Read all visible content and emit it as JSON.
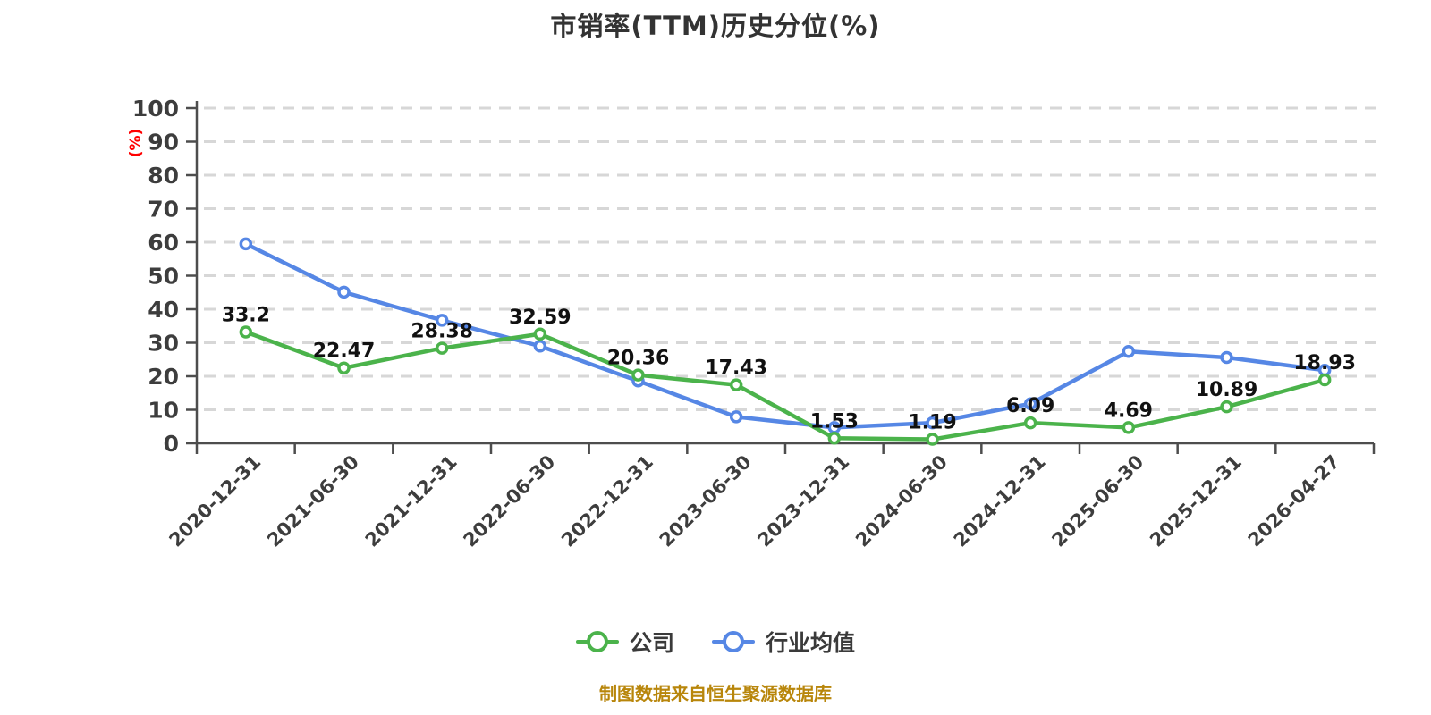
{
  "title": "市销率(TTM)历史分位(%)",
  "footer": "制图数据来自恒生聚源数据库",
  "legend": [
    {
      "label": "公司",
      "color": "#4bb34b"
    },
    {
      "label": "行业均值",
      "color": "#5687e5"
    }
  ],
  "colors": {
    "company_line": "#4bb34b",
    "industry_line": "#5687e5",
    "marker_fill": "#ffffff",
    "grid": "#d7d7d7",
    "axis": "#4d4d4d",
    "tick_label": "#3d3d3d",
    "value_label": "#111111",
    "y_axis_name": "#ff0000",
    "title": "#333333",
    "footer": "#b8860b"
  },
  "chart_data": {
    "type": "line",
    "title": "市销率(TTM)历史分位(%)",
    "categories": [
      "2020-12-31",
      "2021-06-30",
      "2021-12-31",
      "2022-06-30",
      "2022-12-31",
      "2023-06-30",
      "2023-12-31",
      "2024-06-30",
      "2024-12-31",
      "2025-06-30",
      "2025-12-31",
      "2026-04-27"
    ],
    "series": [
      {
        "name": "行业均值",
        "color": "#5687e5",
        "values": [
          59.5,
          45.1,
          36.7,
          29.0,
          18.6,
          7.9,
          4.7,
          6.1,
          11.8,
          27.4,
          25.6,
          21.8
        ],
        "values_estimated": true,
        "show_value_labels": false
      },
      {
        "name": "公司",
        "color": "#4bb34b",
        "values": [
          33.2,
          22.47,
          28.38,
          32.59,
          20.36,
          17.43,
          1.53,
          1.19,
          6.09,
          4.69,
          10.89,
          18.93
        ],
        "value_labels": [
          "33.2",
          "22.47",
          "28.38",
          "32.59",
          "20.36",
          "17.43",
          "1.53",
          "1.19",
          "6.09",
          "4.69",
          "10.89",
          "18.93"
        ],
        "show_value_labels": true
      }
    ],
    "xlabel": "",
    "ylabel": "(%)",
    "ylim": [
      0,
      100
    ],
    "y_ticks": [
      0,
      10,
      20,
      30,
      40,
      50,
      60,
      70,
      80,
      90,
      100
    ],
    "grid": "horizontal-dashed",
    "legend_position": "bottom"
  }
}
